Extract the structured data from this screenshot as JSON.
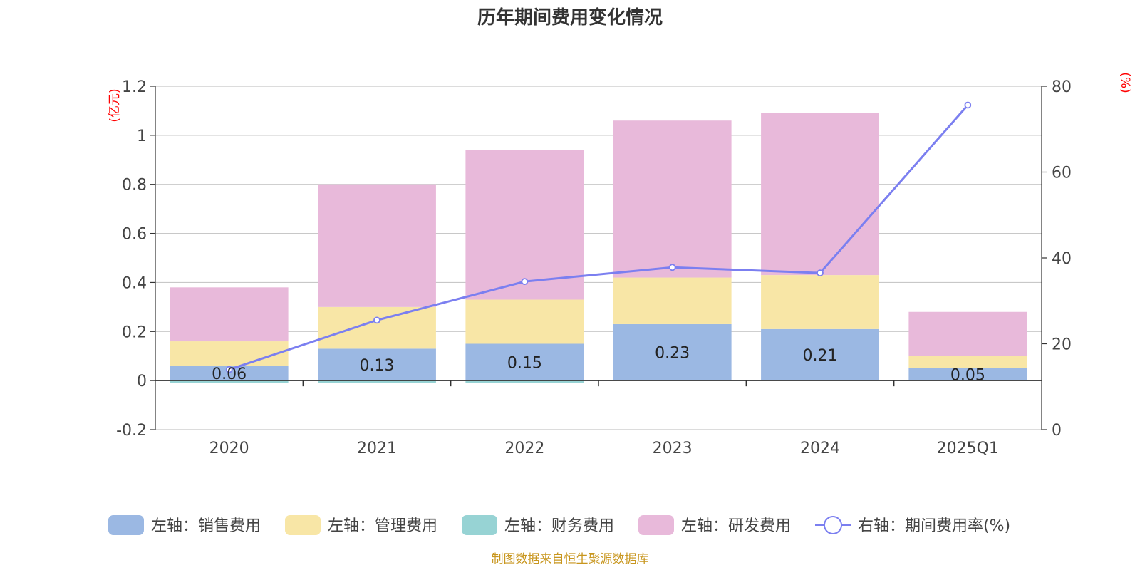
{
  "chart_data": {
    "type": "bar",
    "stacked": true,
    "title": "历年期间费用变化情况",
    "categories": [
      "2020",
      "2021",
      "2022",
      "2023",
      "2024",
      "2025Q1"
    ],
    "left_axis": {
      "unit": "(亿元)",
      "ylim": [
        -0.2,
        1.2
      ],
      "ticks": [
        "-0.2",
        "0",
        "0.2",
        "0.4",
        "0.6",
        "0.8",
        "1",
        "1.2"
      ]
    },
    "right_axis": {
      "unit": "(%)",
      "ylim": [
        0,
        80
      ],
      "ticks": [
        "0",
        "20",
        "40",
        "60",
        "80"
      ]
    },
    "series": [
      {
        "name": "左轴：销售费用",
        "type": "bar",
        "axis": "left",
        "color": "#9bb8e3",
        "values": [
          0.06,
          0.13,
          0.15,
          0.23,
          0.21,
          0.05
        ],
        "labels": [
          "0.06",
          "0.13",
          "0.15",
          "0.23",
          "0.21",
          "0.05"
        ]
      },
      {
        "name": "左轴：管理费用",
        "type": "bar",
        "axis": "left",
        "color": "#f8e6a6",
        "values": [
          0.1,
          0.17,
          0.18,
          0.19,
          0.22,
          0.05
        ]
      },
      {
        "name": "左轴：财务费用",
        "type": "bar",
        "axis": "left",
        "color": "#97d3d4",
        "values": [
          -0.01,
          -0.01,
          -0.01,
          0.0,
          0.0,
          0.0
        ]
      },
      {
        "name": "左轴：研发费用",
        "type": "bar",
        "axis": "left",
        "color": "#e8b9da",
        "values": [
          0.22,
          0.5,
          0.61,
          0.64,
          0.66,
          0.18
        ]
      },
      {
        "name": "右轴：期间费用率(%)",
        "type": "line",
        "axis": "right",
        "color": "#7b7ff0",
        "values": [
          14.0,
          25.5,
          34.5,
          37.8,
          36.5,
          75.6
        ]
      }
    ],
    "grid": true,
    "legend": "bottom"
  },
  "source_text": "制图数据来自恒生聚源数据库"
}
